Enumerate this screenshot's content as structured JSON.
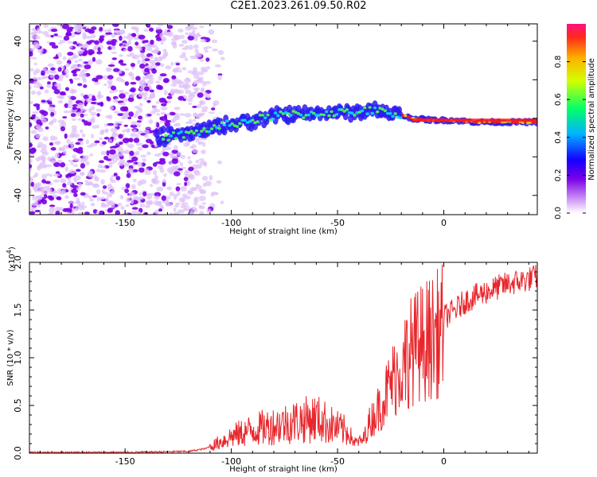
{
  "title": "C2E1.2023.261.09.50.R02",
  "colors": {
    "snr_line": "#e8262b",
    "spectro_dark": "#7a00e6",
    "spectro_light": "#ddbff8"
  },
  "chart_data": [
    {
      "type": "heatmap",
      "xlabel": "Height of straight line (km)",
      "ylabel": "Frequency (Hz)",
      "xlim": [
        -195,
        44
      ],
      "ylim": [
        -50,
        49
      ],
      "xticks": [
        "-150",
        "-100",
        "-50",
        "0"
      ],
      "yticks": [
        "-40",
        "-20",
        "0",
        "20",
        "40"
      ],
      "ridge": {
        "x": [
          -135,
          -125,
          -115,
          -105,
          -95,
          -85,
          -75,
          -65,
          -55,
          -45,
          -35,
          -25,
          -15,
          -5,
          5,
          15,
          25,
          40
        ],
        "y": [
          -10,
          -9,
          -7,
          -4,
          -2,
          0,
          2,
          2,
          3,
          3,
          4,
          3,
          0,
          -1,
          -1,
          -2,
          -2,
          -2
        ]
      },
      "noise_region_x": [
        -195,
        -112
      ],
      "colorbar": {
        "label": "Normalized spectral amplitude",
        "ticks": [
          "0.0",
          "0.2",
          "0.4",
          "0.6",
          "0.8"
        ],
        "range": [
          0,
          1
        ],
        "colormap": "rainbow-white"
      }
    },
    {
      "type": "line",
      "xlabel": "Height of straight line (km)",
      "ylabel": "SNR (10 * v/v)",
      "scale_label": "(x10",
      "scale_exp": "4",
      "scale_close": ")",
      "xlim": [
        -195,
        44
      ],
      "ylim": [
        0.0,
        2.0
      ],
      "xticks": [
        "-150",
        "-100",
        "-50",
        "0"
      ],
      "yticks": [
        "0.0",
        "0.5",
        "1.0",
        "1.5",
        "2.0"
      ],
      "series": [
        {
          "x": [
            -195,
            -150,
            -120,
            -112,
            -108,
            -100,
            -90,
            -80,
            -70,
            -60,
            -50,
            -45,
            -42,
            -38,
            -35,
            -30,
            -25,
            -20,
            -15,
            -12,
            -10,
            -5,
            0,
            5,
            10,
            20,
            30,
            40,
            44
          ],
          "y": [
            0.01,
            0.01,
            0.02,
            0.05,
            0.1,
            0.2,
            0.28,
            0.33,
            0.38,
            0.42,
            0.3,
            0.25,
            0.12,
            0.15,
            0.35,
            0.55,
            0.8,
            1.05,
            1.2,
            1.25,
            1.3,
            1.35,
            1.45,
            1.52,
            1.62,
            1.72,
            1.8,
            1.85,
            1.88
          ]
        }
      ]
    }
  ]
}
